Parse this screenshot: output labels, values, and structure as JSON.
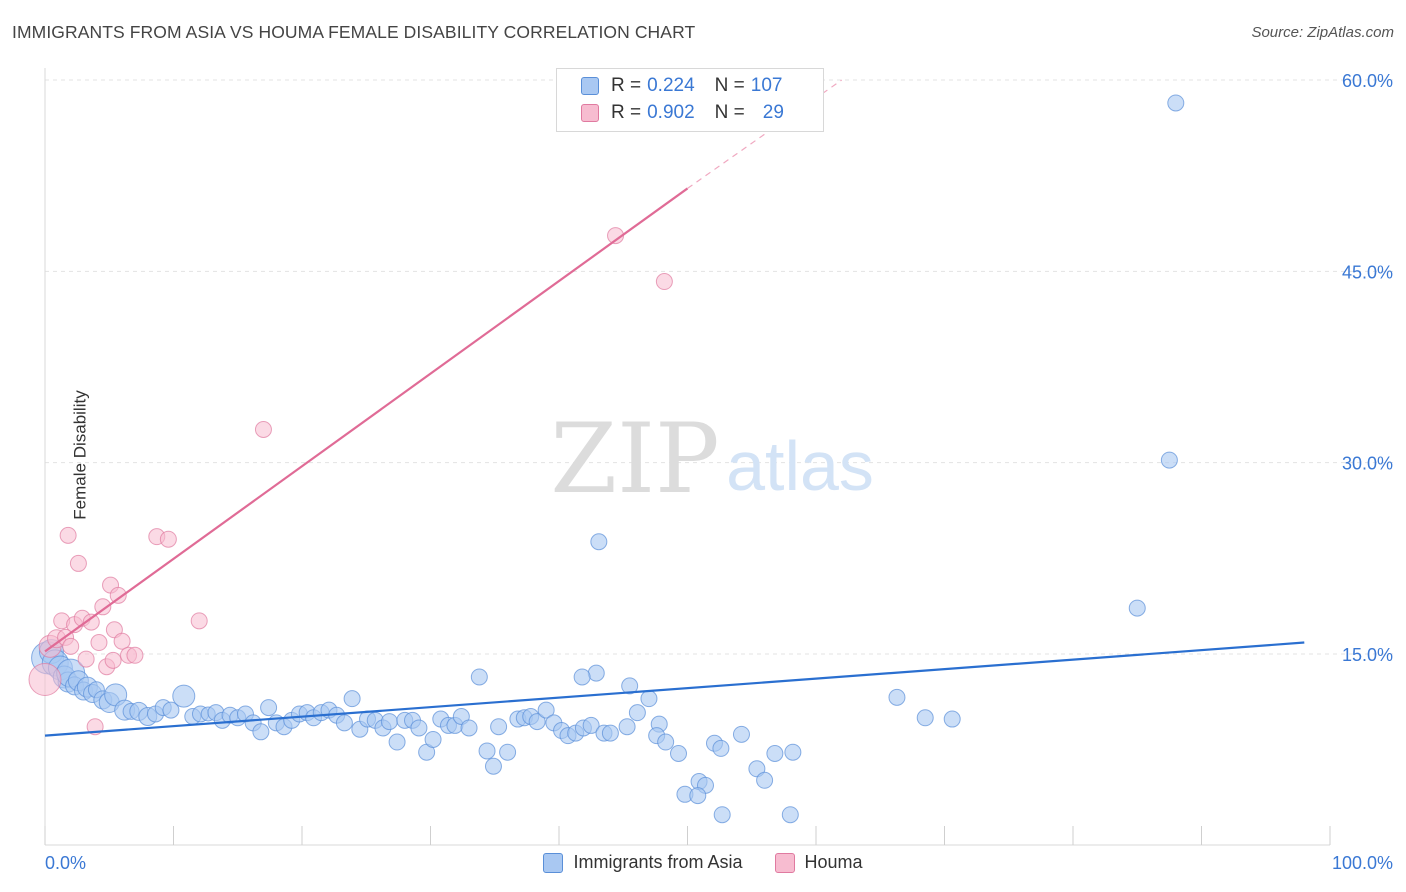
{
  "title": "IMMIGRANTS FROM ASIA VS HOUMA FEMALE DISABILITY CORRELATION CHART",
  "source": "Source: ZipAtlas.com",
  "watermark": {
    "zip": "ZIP",
    "atlas": "atlas"
  },
  "legend": {
    "rows": [
      {
        "r_label": "R =",
        "r_value": "0.224",
        "n_label": "N =",
        "n_value": "107",
        "color": "#a9c8f2",
        "border": "#5a8fd8"
      },
      {
        "r_label": "R =",
        "r_value": "0.902",
        "n_label": "N =",
        "n_value": "29",
        "color": "#f7bcd0",
        "border": "#e07aa0"
      }
    ]
  },
  "bottom_legend": [
    {
      "label": "Immigrants from Asia",
      "color": "#a9c8f2",
      "border": "#5a8fd8"
    },
    {
      "label": "Houma",
      "color": "#f7bcd0",
      "border": "#e07aa0"
    }
  ],
  "chart_data": {
    "type": "scatter",
    "title": "IMMIGRANTS FROM ASIA VS HOUMA FEMALE DISABILITY CORRELATION CHART",
    "xlabel": "",
    "ylabel": "Female Disability",
    "xlim": [
      0,
      100
    ],
    "ylim": [
      0,
      63
    ],
    "x_tick_labels": [
      "0.0%",
      "100.0%"
    ],
    "y_ticks": [
      15,
      30,
      45,
      60
    ],
    "y_tick_labels": [
      "15.0%",
      "30.0%",
      "45.0%",
      "60.0%"
    ],
    "grid": true,
    "series": [
      {
        "name": "Immigrants from Asia",
        "color": "#a9c8f2",
        "stroke": "#5a8fd8",
        "trend": {
          "x0": 0,
          "y0": 8.6,
          "x1": 98,
          "y1": 15.9,
          "color": "#2a6fd0"
        },
        "points": [
          [
            0.2,
            14.7,
            16
          ],
          [
            0.5,
            15.2,
            12
          ],
          [
            0.8,
            14.3,
            13
          ],
          [
            1.2,
            13.9,
            12
          ],
          [
            1.5,
            13.2,
            11
          ],
          [
            1.8,
            12.8,
            10
          ],
          [
            2.0,
            13.5,
            14
          ],
          [
            2.3,
            12.5,
            9
          ],
          [
            2.6,
            12.9,
            10
          ],
          [
            3.0,
            12.1,
            9
          ],
          [
            3.3,
            12.4,
            10
          ],
          [
            3.7,
            11.9,
            9
          ],
          [
            4.0,
            12.2,
            8
          ],
          [
            4.5,
            11.4,
            9
          ],
          [
            5.0,
            11.2,
            10
          ],
          [
            5.5,
            11.8,
            11
          ],
          [
            6.2,
            10.6,
            10
          ],
          [
            6.7,
            10.5,
            8
          ],
          [
            7.3,
            10.5,
            9
          ],
          [
            8.0,
            10.1,
            9
          ],
          [
            8.6,
            10.3,
            8
          ],
          [
            9.2,
            10.8,
            8
          ],
          [
            9.8,
            10.6,
            8
          ],
          [
            10.8,
            11.7,
            11
          ],
          [
            11.5,
            10.1,
            8
          ],
          [
            12.1,
            10.3,
            8
          ],
          [
            12.7,
            10.3,
            7
          ],
          [
            13.3,
            10.4,
            8
          ],
          [
            13.8,
            9.8,
            8
          ],
          [
            14.4,
            10.2,
            8
          ],
          [
            15.0,
            10.0,
            8
          ],
          [
            15.6,
            10.3,
            8
          ],
          [
            16.2,
            9.6,
            8
          ],
          [
            16.8,
            8.9,
            8
          ],
          [
            17.4,
            10.8,
            8
          ],
          [
            18.0,
            9.6,
            8
          ],
          [
            18.6,
            9.3,
            8
          ],
          [
            19.2,
            9.8,
            8
          ],
          [
            19.8,
            10.3,
            8
          ],
          [
            20.4,
            10.4,
            8
          ],
          [
            20.9,
            10.0,
            8
          ],
          [
            21.5,
            10.4,
            8
          ],
          [
            22.1,
            10.6,
            8
          ],
          [
            22.7,
            10.2,
            8
          ],
          [
            23.3,
            9.6,
            8
          ],
          [
            23.9,
            11.5,
            8
          ],
          [
            24.5,
            9.1,
            8
          ],
          [
            25.1,
            9.9,
            8
          ],
          [
            25.7,
            9.8,
            8
          ],
          [
            26.3,
            9.2,
            8
          ],
          [
            26.8,
            9.7,
            8
          ],
          [
            27.4,
            8.1,
            8
          ],
          [
            28.0,
            9.8,
            8
          ],
          [
            28.6,
            9.8,
            8
          ],
          [
            29.1,
            9.2,
            8
          ],
          [
            29.7,
            7.3,
            8
          ],
          [
            30.2,
            8.3,
            8
          ],
          [
            30.8,
            9.9,
            8
          ],
          [
            31.4,
            9.4,
            8
          ],
          [
            31.9,
            9.4,
            8
          ],
          [
            32.4,
            10.1,
            8
          ],
          [
            33.0,
            9.2,
            8
          ],
          [
            33.8,
            13.2,
            8
          ],
          [
            34.4,
            7.4,
            8
          ],
          [
            34.9,
            6.2,
            8
          ],
          [
            35.3,
            9.3,
            8
          ],
          [
            36.0,
            7.3,
            8
          ],
          [
            36.8,
            9.9,
            8
          ],
          [
            37.3,
            10.0,
            8
          ],
          [
            37.8,
            10.1,
            8
          ],
          [
            38.3,
            9.7,
            8
          ],
          [
            39.0,
            10.6,
            8
          ],
          [
            39.6,
            9.6,
            8
          ],
          [
            40.2,
            9.0,
            8
          ],
          [
            40.7,
            8.6,
            8
          ],
          [
            41.3,
            8.8,
            8
          ],
          [
            41.9,
            9.2,
            8
          ],
          [
            42.5,
            9.4,
            8
          ],
          [
            42.9,
            13.5,
            8
          ],
          [
            43.5,
            8.8,
            8
          ],
          [
            44.0,
            8.8,
            8
          ],
          [
            45.3,
            9.3,
            8
          ],
          [
            41.8,
            13.2,
            8
          ],
          [
            43.1,
            23.8,
            8
          ],
          [
            45.5,
            12.5,
            8
          ],
          [
            46.1,
            10.4,
            8
          ],
          [
            47.0,
            11.5,
            8
          ],
          [
            47.8,
            9.5,
            8
          ],
          [
            47.6,
            8.6,
            8
          ],
          [
            48.3,
            8.1,
            8
          ],
          [
            49.3,
            7.2,
            8
          ],
          [
            49.8,
            4.0,
            8
          ],
          [
            50.9,
            5.0,
            8
          ],
          [
            51.4,
            4.7,
            8
          ],
          [
            52.1,
            8.0,
            8
          ],
          [
            52.6,
            7.6,
            8
          ],
          [
            54.2,
            8.7,
            8
          ],
          [
            55.4,
            6.0,
            8
          ],
          [
            56.0,
            5.1,
            8
          ],
          [
            56.8,
            7.2,
            8
          ],
          [
            58.2,
            7.3,
            8
          ],
          [
            58.0,
            2.4,
            8
          ],
          [
            52.7,
            2.4,
            8
          ],
          [
            50.8,
            3.9,
            8
          ],
          [
            66.3,
            11.6,
            8
          ],
          [
            68.5,
            10.0,
            8
          ],
          [
            70.6,
            9.9,
            8
          ],
          [
            85.0,
            18.6,
            8
          ],
          [
            87.5,
            30.2,
            8
          ],
          [
            88.0,
            58.2,
            8
          ]
        ]
      },
      {
        "name": "Houma",
        "color": "#f7bcd0",
        "stroke": "#e07aa0",
        "trend": {
          "x0": 0,
          "y0": 15.2,
          "x1": 50,
          "y1": 51.5,
          "color": "#e06b96"
        },
        "trend_dashed": {
          "x0": 50,
          "y0": 51.5,
          "x1": 62,
          "y1": 60.0
        },
        "points": [
          [
            0.0,
            13.0,
            16
          ],
          [
            0.4,
            15.6,
            11
          ],
          [
            0.9,
            16.2,
            9
          ],
          [
            1.3,
            17.6,
            8
          ],
          [
            1.6,
            16.3,
            8
          ],
          [
            1.8,
            24.3,
            8
          ],
          [
            2.0,
            15.6,
            8
          ],
          [
            2.3,
            17.3,
            8
          ],
          [
            2.6,
            22.1,
            8
          ],
          [
            2.9,
            17.8,
            8
          ],
          [
            3.2,
            14.6,
            8
          ],
          [
            3.6,
            17.5,
            8
          ],
          [
            3.9,
            9.3,
            8
          ],
          [
            4.2,
            15.9,
            8
          ],
          [
            4.5,
            18.7,
            8
          ],
          [
            4.8,
            14.0,
            8
          ],
          [
            5.1,
            20.4,
            8
          ],
          [
            5.4,
            16.9,
            8
          ],
          [
            5.7,
            19.6,
            8
          ],
          [
            6.0,
            16.0,
            8
          ],
          [
            6.5,
            14.9,
            8
          ],
          [
            7.0,
            14.9,
            8
          ],
          [
            8.7,
            24.2,
            8
          ],
          [
            9.6,
            24.0,
            8
          ],
          [
            12.0,
            17.6,
            8
          ],
          [
            17.0,
            32.6,
            8
          ],
          [
            44.4,
            47.8,
            8
          ],
          [
            48.2,
            44.2,
            8
          ],
          [
            5.3,
            14.5,
            8
          ]
        ]
      }
    ]
  }
}
